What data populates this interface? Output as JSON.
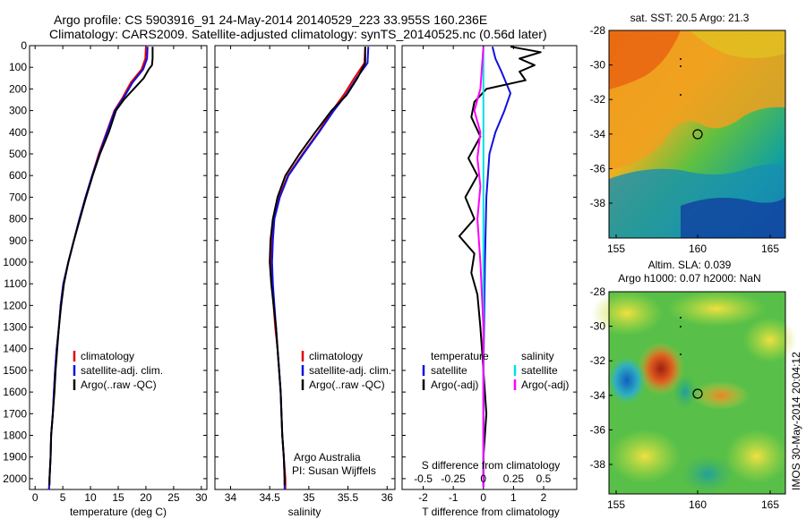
{
  "header": {
    "title_line1": "Argo profile: CS 5903916_91 24-May-2014 20140529_223 33.955S 160.236E",
    "title_line2": "Climatology: CARS2009. Satellite-adjusted climatology: synTS_20140525.nc (0.56d later)"
  },
  "colors": {
    "climatology": "#e00000",
    "satellite": "#1010e0",
    "argo": "#000000",
    "salinity_satellite": "#00e0e0",
    "salinity_argo": "#ff00ff"
  },
  "chart_data": [
    {
      "id": "temperature",
      "type": "line",
      "xlabel": "temperature (deg C)",
      "ylabel": "",
      "xlim": [
        -1,
        31
      ],
      "ylim": [
        2050,
        0
      ],
      "xticks": [
        0,
        5,
        10,
        15,
        20,
        25,
        30
      ],
      "xtick_labels": [
        "0",
        "5",
        "10",
        "15",
        "20",
        "25",
        "30"
      ],
      "yticks": [
        0,
        100,
        200,
        300,
        400,
        500,
        600,
        700,
        800,
        900,
        1000,
        1100,
        1200,
        1300,
        1400,
        1500,
        1600,
        1700,
        1800,
        1900,
        2000
      ],
      "ytick_labels": [
        "0",
        "100",
        "200",
        "300",
        "400",
        "500",
        "600",
        "700",
        "800",
        "900",
        "1000",
        "1100",
        "1200",
        "1300",
        "1400",
        "1500",
        "1600",
        "1700",
        "1800",
        "1900",
        "2000"
      ],
      "legend": [
        "climatology",
        "satellite-adj. clim.",
        "Argo(..raw -QC)"
      ],
      "legend_position": "lower-center",
      "series": [
        {
          "name": "climatology",
          "color": "#e00000",
          "points": [
            [
              20.0,
              5
            ],
            [
              19.9,
              60
            ],
            [
              19.2,
              110
            ],
            [
              17.3,
              170
            ],
            [
              15.8,
              240
            ],
            [
              14.3,
              300
            ],
            [
              12.9,
              400
            ],
            [
              11.5,
              500
            ],
            [
              10.3,
              600
            ],
            [
              9.1,
              700
            ],
            [
              8.0,
              800
            ],
            [
              7.0,
              900
            ],
            [
              6.0,
              1000
            ],
            [
              5.1,
              1100
            ],
            [
              4.6,
              1200
            ],
            [
              4.3,
              1300
            ],
            [
              3.9,
              1400
            ],
            [
              3.6,
              1500
            ],
            [
              3.4,
              1600
            ],
            [
              3.2,
              1700
            ],
            [
              2.9,
              1800
            ],
            [
              2.8,
              1900
            ],
            [
              2.6,
              2000
            ],
            [
              2.5,
              2050
            ]
          ]
        },
        {
          "name": "satellite-adj. clim.",
          "color": "#1010e0",
          "points": [
            [
              20.3,
              5
            ],
            [
              20.2,
              60
            ],
            [
              19.5,
              110
            ],
            [
              17.6,
              170
            ],
            [
              16.0,
              240
            ],
            [
              14.4,
              300
            ],
            [
              13.0,
              400
            ],
            [
              11.6,
              500
            ],
            [
              10.3,
              600
            ],
            [
              9.1,
              700
            ],
            [
              8.0,
              800
            ],
            [
              7.0,
              900
            ],
            [
              6.0,
              1000
            ],
            [
              5.1,
              1100
            ],
            [
              4.6,
              1200
            ],
            [
              4.3,
              1300
            ],
            [
              3.9,
              1400
            ],
            [
              3.6,
              1500
            ],
            [
              3.4,
              1600
            ],
            [
              3.2,
              1700
            ],
            [
              2.9,
              1800
            ],
            [
              2.8,
              1900
            ],
            [
              2.6,
              2000
            ],
            [
              2.5,
              2050
            ]
          ]
        },
        {
          "name": "Argo(..raw -QC)",
          "color": "#000000",
          "points": [
            [
              21.2,
              5
            ],
            [
              21.2,
              60
            ],
            [
              21.1,
              90
            ],
            [
              20.5,
              110
            ],
            [
              19.6,
              150
            ],
            [
              17.8,
              200
            ],
            [
              16.0,
              250
            ],
            [
              14.6,
              300
            ],
            [
              13.3,
              400
            ],
            [
              11.7,
              500
            ],
            [
              10.4,
              600
            ],
            [
              9.2,
              700
            ],
            [
              8.1,
              800
            ],
            [
              7.0,
              900
            ],
            [
              6.0,
              1000
            ],
            [
              5.2,
              1100
            ],
            [
              4.7,
              1200
            ],
            [
              4.3,
              1300
            ],
            [
              4.0,
              1400
            ],
            [
              3.7,
              1500
            ],
            [
              3.5,
              1600
            ],
            [
              3.2,
              1700
            ],
            [
              2.9,
              1800
            ],
            [
              2.8,
              1900
            ],
            [
              2.6,
              2000
            ],
            [
              2.6,
              2030
            ]
          ]
        }
      ]
    },
    {
      "id": "salinity",
      "type": "line",
      "xlabel": "salinity",
      "ylabel": "",
      "xlim": [
        33.8,
        36.1
      ],
      "ylim": [
        2050,
        0
      ],
      "xticks": [
        34,
        34.5,
        35,
        35.5,
        36
      ],
      "xtick_labels": [
        "34",
        "34.5",
        "35",
        "35.5",
        "36"
      ],
      "legend": [
        "climatology",
        "satellite-adj. clim.",
        "Argo(..raw -QC)"
      ],
      "legend_position": "lower-right",
      "annotation": [
        "Argo Australia",
        "PI: Susan Wijffels"
      ],
      "series": [
        {
          "name": "climatology",
          "color": "#e00000",
          "points": [
            [
              35.72,
              5
            ],
            [
              35.71,
              80
            ],
            [
              35.58,
              150
            ],
            [
              35.46,
              220
            ],
            [
              35.3,
              300
            ],
            [
              35.12,
              400
            ],
            [
              34.92,
              500
            ],
            [
              34.73,
              600
            ],
            [
              34.62,
              700
            ],
            [
              34.55,
              800
            ],
            [
              34.53,
              900
            ],
            [
              34.52,
              1000
            ],
            [
              34.53,
              1100
            ],
            [
              34.55,
              1200
            ],
            [
              34.57,
              1300
            ],
            [
              34.6,
              1400
            ],
            [
              34.62,
              1500
            ],
            [
              34.64,
              1600
            ],
            [
              34.65,
              1700
            ],
            [
              34.66,
              1800
            ],
            [
              34.68,
              1900
            ],
            [
              34.7,
              2000
            ],
            [
              34.7,
              2050
            ]
          ]
        },
        {
          "name": "satellite-adj. clim.",
          "color": "#1010e0",
          "points": [
            [
              35.76,
              5
            ],
            [
              35.75,
              80
            ],
            [
              35.61,
              150
            ],
            [
              35.49,
              220
            ],
            [
              35.32,
              300
            ],
            [
              35.13,
              400
            ],
            [
              34.93,
              500
            ],
            [
              34.74,
              600
            ],
            [
              34.63,
              700
            ],
            [
              34.56,
              800
            ],
            [
              34.54,
              900
            ],
            [
              34.53,
              1000
            ],
            [
              34.54,
              1100
            ],
            [
              34.56,
              1200
            ],
            [
              34.58,
              1300
            ],
            [
              34.6,
              1400
            ],
            [
              34.62,
              1500
            ],
            [
              34.64,
              1600
            ],
            [
              34.65,
              1700
            ],
            [
              34.66,
              1800
            ],
            [
              34.68,
              1900
            ],
            [
              34.69,
              2000
            ],
            [
              34.69,
              2050
            ]
          ]
        },
        {
          "name": "Argo(..raw -QC)",
          "color": "#000000",
          "points": [
            [
              35.72,
              5
            ],
            [
              35.72,
              80
            ],
            [
              35.62,
              150
            ],
            [
              35.48,
              230
            ],
            [
              35.29,
              300
            ],
            [
              35.08,
              400
            ],
            [
              34.88,
              500
            ],
            [
              34.7,
              600
            ],
            [
              34.6,
              700
            ],
            [
              34.54,
              800
            ],
            [
              34.51,
              900
            ],
            [
              34.5,
              1000
            ],
            [
              34.52,
              1100
            ],
            [
              34.55,
              1200
            ],
            [
              34.58,
              1300
            ],
            [
              34.6,
              1400
            ],
            [
              34.62,
              1500
            ],
            [
              34.64,
              1600
            ],
            [
              34.65,
              1700
            ],
            [
              34.66,
              1800
            ],
            [
              34.68,
              1900
            ],
            [
              34.69,
              2000
            ],
            [
              34.69,
              2030
            ]
          ]
        }
      ]
    },
    {
      "id": "difference",
      "type": "line",
      "xlabel": "T difference from climatology",
      "xlabel_top": "S difference from climatology",
      "ylabel": "",
      "xlim": [
        -2.7,
        3.1
      ],
      "ylim": [
        2050,
        0
      ],
      "xticks": [
        -2,
        -1,
        0,
        1,
        2
      ],
      "xtick_labels": [
        "-2",
        "-1",
        "0",
        "1",
        "2"
      ],
      "s_tick_labels": [
        "-0.5",
        "-0.25",
        "0",
        "0.25",
        "0.5"
      ],
      "legend": {
        "temperature_header": "temperature",
        "salinity_header": "salinity",
        "temperature_items": [
          "satellite",
          "Argo(-adj)"
        ],
        "salinity_items": [
          "satellite",
          "Argo(-adj)"
        ]
      },
      "legend_position": "lower-center",
      "series": [
        {
          "name": "T satellite",
          "color": "#1010e0",
          "points": [
            [
              0.3,
              5
            ],
            [
              0.4,
              60
            ],
            [
              0.6,
              120
            ],
            [
              0.9,
              220
            ],
            [
              0.7,
              300
            ],
            [
              0.4,
              400
            ],
            [
              0.2,
              500
            ],
            [
              0.1,
              700
            ],
            [
              0.05,
              1000
            ],
            [
              0,
              1500
            ],
            [
              0,
              2040
            ]
          ]
        },
        {
          "name": "T Argo(-adj)",
          "color": "#000000",
          "points": [
            [
              0.9,
              5
            ],
            [
              1.9,
              30
            ],
            [
              1.2,
              60
            ],
            [
              1.7,
              90
            ],
            [
              1.2,
              120
            ],
            [
              1.4,
              160
            ],
            [
              0.1,
              200
            ],
            [
              -0.3,
              260
            ],
            [
              -0.4,
              330
            ],
            [
              -0.1,
              420
            ],
            [
              -0.5,
              520
            ],
            [
              -0.2,
              600
            ],
            [
              -0.6,
              700
            ],
            [
              -0.3,
              800
            ],
            [
              -0.8,
              880
            ],
            [
              -0.3,
              960
            ],
            [
              -0.4,
              1050
            ],
            [
              -0.2,
              1150
            ],
            [
              -0.1,
              1300
            ],
            [
              0.0,
              1500
            ],
            [
              0.1,
              1700
            ],
            [
              0.0,
              1900
            ],
            [
              0.0,
              2030
            ]
          ]
        },
        {
          "name": "S satellite",
          "color": "#00e0e0",
          "points": [
            [
              0.0,
              5
            ],
            [
              0.0,
              200
            ],
            [
              0.0,
              2040
            ]
          ]
        },
        {
          "name": "S Argo(-adj)",
          "color": "#ff00ff",
          "points": [
            [
              0.0,
              5
            ],
            [
              -0.1,
              200
            ],
            [
              -0.3,
              300
            ],
            [
              -0.1,
              400
            ],
            [
              -0.2,
              520
            ],
            [
              -0.1,
              650
            ],
            [
              -0.2,
              800
            ],
            [
              -0.1,
              1000
            ],
            [
              0.0,
              1300
            ],
            [
              0.0,
              2040
            ]
          ]
        }
      ]
    }
  ],
  "maps": {
    "sst": {
      "title": "sat. SST: 20.5  Argo: 21.3",
      "yticks": [
        "-28",
        "-30",
        "-32",
        "-34",
        "-36",
        "-38"
      ],
      "xticks": [
        "155",
        "160",
        "165"
      ]
    },
    "sla": {
      "title_line1": "Altim. SLA: 0.039",
      "title_line2": "Argo h1000: 0.07  h2000: NaN",
      "yticks": [
        "-28",
        "-30",
        "-32",
        "-34",
        "-36",
        "-38"
      ],
      "xticks": [
        "155",
        "160",
        "165"
      ]
    }
  },
  "side_label": "IMOS 30-May-2014 20:04:12"
}
